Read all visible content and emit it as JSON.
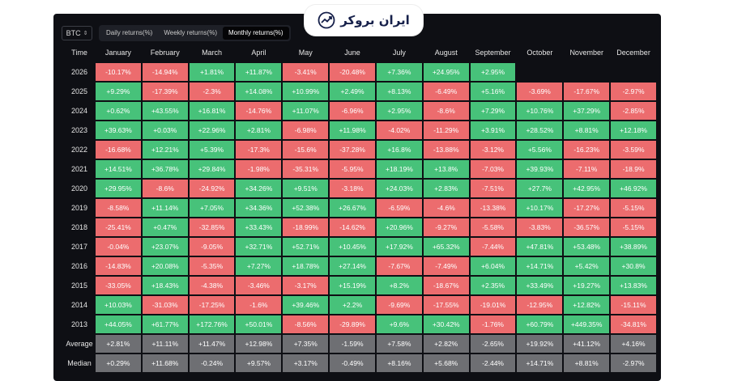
{
  "logo": {
    "text": "ایران بروکر",
    "icon": "chart-trend-icon"
  },
  "toolbar": {
    "symbol": "BTC",
    "tabs": [
      "Daily returns(%)",
      "Weekly returns(%)",
      "Monthly returns(%)"
    ],
    "active_tab": 2
  },
  "colors": {
    "positive": "#47c27a",
    "negative": "#ec6c6e",
    "summary": "#6e6f73",
    "background": "#0e0f14"
  },
  "chart_data": {
    "type": "table",
    "columns": [
      "Time",
      "January",
      "February",
      "March",
      "April",
      "May",
      "June",
      "July",
      "August",
      "September",
      "October",
      "November",
      "December"
    ],
    "rows": [
      {
        "label": "2026",
        "values": [
          "-10.17%",
          "-14.94%",
          "+1.81%",
          "+11.87%",
          "-3.41%",
          "-20.48%",
          "+7.36%",
          "+24.95%",
          "+2.95%",
          "",
          "",
          ""
        ]
      },
      {
        "label": "2025",
        "values": [
          "+9.29%",
          "-17.39%",
          "-2.3%",
          "+14.08%",
          "+10.99%",
          "+2.49%",
          "+8.13%",
          "-6.49%",
          "+5.16%",
          "-3.69%",
          "-17.67%",
          "-2.97%"
        ]
      },
      {
        "label": "2024",
        "values": [
          "+0.62%",
          "+43.55%",
          "+16.81%",
          "-14.76%",
          "+11.07%",
          "-6.96%",
          "+2.95%",
          "-8.6%",
          "+7.29%",
          "+10.76%",
          "+37.29%",
          "-2.85%"
        ]
      },
      {
        "label": "2023",
        "values": [
          "+39.63%",
          "+0.03%",
          "+22.96%",
          "+2.81%",
          "-6.98%",
          "+11.98%",
          "-4.02%",
          "-11.29%",
          "+3.91%",
          "+28.52%",
          "+8.81%",
          "+12.18%"
        ]
      },
      {
        "label": "2022",
        "values": [
          "-16.68%",
          "+12.21%",
          "+5.39%",
          "-17.3%",
          "-15.6%",
          "-37.28%",
          "+16.8%",
          "-13.88%",
          "-3.12%",
          "+5.56%",
          "-16.23%",
          "-3.59%"
        ]
      },
      {
        "label": "2021",
        "values": [
          "+14.51%",
          "+36.78%",
          "+29.84%",
          "-1.98%",
          "-35.31%",
          "-5.95%",
          "+18.19%",
          "+13.8%",
          "-7.03%",
          "+39.93%",
          "-7.11%",
          "-18.9%"
        ]
      },
      {
        "label": "2020",
        "values": [
          "+29.95%",
          "-8.6%",
          "-24.92%",
          "+34.26%",
          "+9.51%",
          "-3.18%",
          "+24.03%",
          "+2.83%",
          "-7.51%",
          "+27.7%",
          "+42.95%",
          "+46.92%"
        ]
      },
      {
        "label": "2019",
        "values": [
          "-8.58%",
          "+11.14%",
          "+7.05%",
          "+34.36%",
          "+52.38%",
          "+26.67%",
          "-6.59%",
          "-4.6%",
          "-13.38%",
          "+10.17%",
          "-17.27%",
          "-5.15%"
        ]
      },
      {
        "label": "2018",
        "values": [
          "-25.41%",
          "+0.47%",
          "-32.85%",
          "+33.43%",
          "-18.99%",
          "-14.62%",
          "+20.96%",
          "-9.27%",
          "-5.58%",
          "-3.83%",
          "-36.57%",
          "-5.15%"
        ]
      },
      {
        "label": "2017",
        "values": [
          "-0.04%",
          "+23.07%",
          "-9.05%",
          "+32.71%",
          "+52.71%",
          "+10.45%",
          "+17.92%",
          "+65.32%",
          "-7.44%",
          "+47.81%",
          "+53.48%",
          "+38.89%"
        ]
      },
      {
        "label": "2016",
        "values": [
          "-14.83%",
          "+20.08%",
          "-5.35%",
          "+7.27%",
          "+18.78%",
          "+27.14%",
          "-7.67%",
          "-7.49%",
          "+6.04%",
          "+14.71%",
          "+5.42%",
          "+30.8%"
        ]
      },
      {
        "label": "2015",
        "values": [
          "-33.05%",
          "+18.43%",
          "-4.38%",
          "-3.46%",
          "-3.17%",
          "+15.19%",
          "+8.2%",
          "-18.67%",
          "+2.35%",
          "+33.49%",
          "+19.27%",
          "+13.83%"
        ]
      },
      {
        "label": "2014",
        "values": [
          "+10.03%",
          "-31.03%",
          "-17.25%",
          "-1.6%",
          "+39.46%",
          "+2.2%",
          "-9.69%",
          "-17.55%",
          "-19.01%",
          "-12.95%",
          "+12.82%",
          "-15.11%"
        ]
      },
      {
        "label": "2013",
        "values": [
          "+44.05%",
          "+61.77%",
          "+172.76%",
          "+50.01%",
          "-8.56%",
          "-29.89%",
          "+9.6%",
          "+30.42%",
          "-1.76%",
          "+60.79%",
          "+449.35%",
          "-34.81%"
        ]
      }
    ],
    "summary_rows": [
      {
        "label": "Average",
        "values": [
          "+2.81%",
          "+11.11%",
          "+11.47%",
          "+12.98%",
          "+7.35%",
          "-1.59%",
          "+7.58%",
          "+2.82%",
          "-2.65%",
          "+19.92%",
          "+41.12%",
          "+4.16%"
        ]
      },
      {
        "label": "Median",
        "values": [
          "+0.29%",
          "+11.68%",
          "-0.24%",
          "+9.57%",
          "+3.17%",
          "-0.49%",
          "+8.16%",
          "+5.68%",
          "-2.44%",
          "+14.71%",
          "+8.81%",
          "-2.97%"
        ]
      }
    ]
  }
}
